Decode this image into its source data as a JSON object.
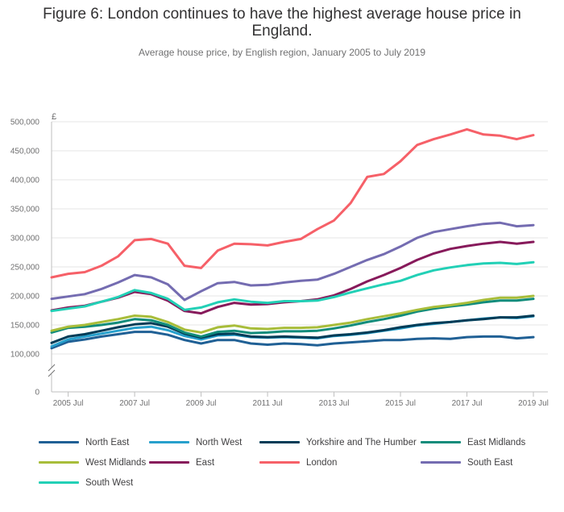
{
  "title": "Figure 6: London continues to have the highest average house price in England.",
  "subtitle": "Average house price, by English region, January 2005 to July 2019",
  "chart_data": {
    "type": "line",
    "title": "Figure 6: London continues to have the highest average house price in England.",
    "subtitle": "Average house price, by English region, January 2005 to July 2019",
    "y_unit_label": "£",
    "ylim": [
      0,
      500000
    ],
    "y_axis_break": true,
    "y_ticks": [
      "0",
      "100,000",
      "150,000",
      "200,000",
      "250,000",
      "300,000",
      "350,000",
      "400,000",
      "450,000",
      "500,000"
    ],
    "y_tick_values": [
      0,
      100000,
      150000,
      200000,
      250000,
      300000,
      350000,
      400000,
      450000,
      500000
    ],
    "x_ticks": [
      "2005 Jul",
      "2007 Jul",
      "2009 Jul",
      "2011 Jul",
      "2013 Jul",
      "2015 Jul",
      "2017 Jul",
      "2019 Jul"
    ],
    "x_tick_dates": [
      "2005-07",
      "2007-07",
      "2009-07",
      "2011-07",
      "2013-07",
      "2015-07",
      "2017-07",
      "2019-07"
    ],
    "x_range": [
      "2005-01",
      "2019-07"
    ],
    "grid": "horizontal",
    "legend_position": "bottom",
    "x": [
      "2005-01",
      "2005-07",
      "2006-01",
      "2006-07",
      "2007-01",
      "2007-07",
      "2008-01",
      "2008-07",
      "2009-01",
      "2009-07",
      "2010-01",
      "2010-07",
      "2011-01",
      "2011-07",
      "2012-01",
      "2012-07",
      "2013-01",
      "2013-07",
      "2014-01",
      "2014-07",
      "2015-01",
      "2015-07",
      "2016-01",
      "2016-07",
      "2017-01",
      "2017-07",
      "2018-01",
      "2018-07",
      "2019-01",
      "2019-07"
    ],
    "series": [
      {
        "name": "North East",
        "color": "#206095",
        "values": [
          110000,
          121000,
          125000,
          130000,
          134000,
          138000,
          138000,
          133000,
          124000,
          118000,
          124000,
          124000,
          118000,
          116000,
          118000,
          117000,
          115000,
          118000,
          120000,
          122000,
          124000,
          124000,
          126000,
          127000,
          126000,
          129000,
          130000,
          130000,
          127000,
          129000
        ]
      },
      {
        "name": "North West",
        "color": "#27a0cc",
        "values": [
          113000,
          125000,
          130000,
          135000,
          140000,
          145000,
          147000,
          141000,
          131000,
          125000,
          132000,
          133000,
          129000,
          128000,
          129000,
          128000,
          127000,
          131000,
          133000,
          136000,
          140000,
          144000,
          149000,
          152000,
          155000,
          158000,
          161000,
          163000,
          162000,
          165000
        ]
      },
      {
        "name": "Yorkshire and The Humber",
        "color": "#003c57",
        "values": [
          119000,
          130000,
          134000,
          140000,
          146000,
          151000,
          153000,
          147000,
          135000,
          128000,
          134000,
          135000,
          130000,
          129000,
          130000,
          129000,
          128000,
          132000,
          134000,
          137000,
          141000,
          146000,
          150000,
          153000,
          155000,
          158000,
          160000,
          163000,
          163000,
          166000
        ]
      },
      {
        "name": "East Midlands",
        "color": "#118c7b",
        "values": [
          137000,
          145000,
          147000,
          150000,
          154000,
          160000,
          158000,
          150000,
          137000,
          130000,
          138000,
          140000,
          136000,
          137000,
          139000,
          139000,
          140000,
          144000,
          149000,
          155000,
          160000,
          166000,
          173000,
          178000,
          182000,
          185000,
          189000,
          192000,
          192000,
          195000
        ]
      },
      {
        "name": "West Midlands",
        "color": "#a8bd3a",
        "values": [
          140000,
          147000,
          150000,
          155000,
          160000,
          166000,
          164000,
          155000,
          142000,
          137000,
          146000,
          149000,
          144000,
          143000,
          145000,
          145000,
          146000,
          150000,
          154000,
          160000,
          165000,
          170000,
          176000,
          181000,
          184000,
          188000,
          193000,
          197000,
          197000,
          200000
        ]
      },
      {
        "name": "East",
        "color": "#871a5b",
        "values": [
          175000,
          180000,
          183000,
          190000,
          197000,
          207000,
          203000,
          192000,
          174000,
          170000,
          181000,
          188000,
          185000,
          186000,
          189000,
          191000,
          194000,
          201000,
          212000,
          225000,
          236000,
          248000,
          262000,
          273000,
          281000,
          286000,
          290000,
          293000,
          290000,
          293000
        ]
      },
      {
        "name": "London",
        "color": "#f66068",
        "values": [
          232000,
          238000,
          241000,
          252000,
          268000,
          296000,
          298000,
          290000,
          252000,
          248000,
          278000,
          290000,
          289000,
          287000,
          293000,
          298000,
          315000,
          330000,
          360000,
          405000,
          410000,
          432000,
          460000,
          470000,
          478000,
          487000,
          478000,
          476000,
          470000,
          477000
        ]
      },
      {
        "name": "South East",
        "color": "#746cb1",
        "values": [
          195000,
          199000,
          203000,
          212000,
          223000,
          236000,
          232000,
          220000,
          193000,
          208000,
          222000,
          224000,
          218000,
          219000,
          223000,
          226000,
          228000,
          238000,
          250000,
          262000,
          272000,
          285000,
          300000,
          310000,
          315000,
          320000,
          324000,
          326000,
          320000,
          322000
        ]
      },
      {
        "name": "South West",
        "color": "#22d0b6",
        "values": [
          174000,
          178000,
          182000,
          190000,
          198000,
          210000,
          205000,
          195000,
          176000,
          180000,
          189000,
          194000,
          190000,
          188000,
          191000,
          191000,
          192000,
          198000,
          206000,
          213000,
          220000,
          226000,
          236000,
          244000,
          249000,
          253000,
          256000,
          257000,
          255000,
          258000
        ]
      }
    ]
  }
}
